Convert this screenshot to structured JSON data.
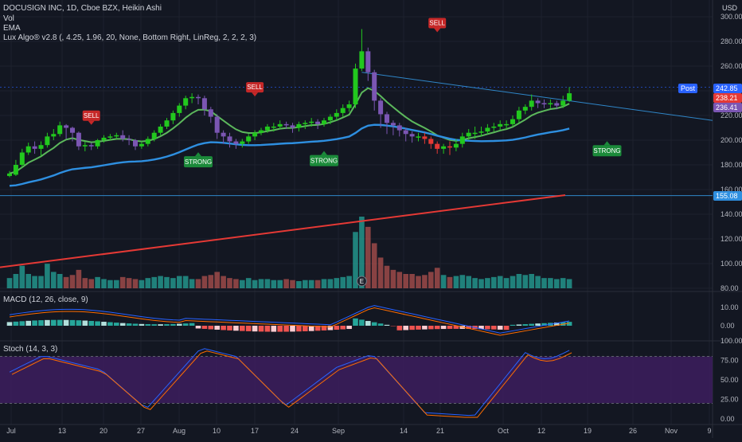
{
  "symbol": {
    "title": "DOCUSIGN INC, 1D, Cboe BZX, Heikin Ashi",
    "currency": "USD"
  },
  "indicators": {
    "vol": "Vol",
    "ema": "EMA",
    "lux": "Lux Algo® v2.8 (, 4.25, 1.96, 20, None, Bottom Right, LinReg, 2, 2, 2, 3)",
    "macd": "MACD (12, 26, close, 9)",
    "stoch": "Stoch (14, 3, 3)"
  },
  "price_tags": {
    "post_label": "Post",
    "post_value": "242.85",
    "last_value": "238.21",
    "ema_value": "236.41",
    "line_value": "155.08"
  },
  "earnings_marker": "E",
  "colors": {
    "background": "#131722",
    "bull": "#22c81e",
    "bear_purple": "#7b56b3",
    "bear_red": "#e53935",
    "ema_fast": "#5cb85c",
    "ema_mid": "#2e8fe0",
    "ema_slow": "#e53935",
    "trendline": "#2f86c8",
    "stoch_fill": "#3d1d5e"
  },
  "chart_data": [
    {
      "type": "candlestick",
      "style": "Heikin Ashi",
      "price_axis": [
        80,
        100,
        120,
        140,
        160,
        180,
        200,
        220,
        240,
        260,
        280,
        300
      ],
      "time_axis": [
        "Jul",
        "13",
        "20",
        "27",
        "Aug",
        "10",
        "17",
        "24",
        "Sep",
        "14",
        "21",
        "Oct",
        "12",
        "19",
        "26",
        "Nov",
        "9"
      ],
      "candles": [
        {
          "o": 171,
          "c": 173,
          "h": 175,
          "l": 170
        },
        {
          "o": 172,
          "c": 180,
          "h": 184,
          "l": 171
        },
        {
          "o": 180,
          "c": 190,
          "h": 193,
          "l": 178
        },
        {
          "o": 190,
          "c": 195,
          "h": 198,
          "l": 188
        },
        {
          "o": 195,
          "c": 193,
          "h": 199,
          "l": 189
        },
        {
          "o": 193,
          "c": 196,
          "h": 199,
          "l": 187
        },
        {
          "o": 196,
          "c": 203,
          "h": 206,
          "l": 194
        },
        {
          "o": 203,
          "c": 205,
          "h": 209,
          "l": 200
        },
        {
          "o": 205,
          "c": 212,
          "h": 215,
          "l": 203
        },
        {
          "o": 212,
          "c": 210,
          "h": 213,
          "l": 201
        },
        {
          "o": 210,
          "c": 206,
          "h": 211,
          "l": 199
        },
        {
          "o": 206,
          "c": 195,
          "h": 207,
          "l": 192
        },
        {
          "o": 195,
          "c": 196,
          "h": 199,
          "l": 191
        },
        {
          "o": 196,
          "c": 195,
          "h": 198,
          "l": 192
        },
        {
          "o": 195,
          "c": 200,
          "h": 201,
          "l": 193
        },
        {
          "o": 200,
          "c": 202,
          "h": 204,
          "l": 198
        },
        {
          "o": 202,
          "c": 203,
          "h": 205,
          "l": 200
        },
        {
          "o": 203,
          "c": 204,
          "h": 206,
          "l": 201
        },
        {
          "o": 204,
          "c": 201,
          "h": 208,
          "l": 199
        },
        {
          "o": 201,
          "c": 200,
          "h": 204,
          "l": 196
        },
        {
          "o": 200,
          "c": 195,
          "h": 201,
          "l": 192
        },
        {
          "o": 195,
          "c": 197,
          "h": 199,
          "l": 193
        },
        {
          "o": 197,
          "c": 201,
          "h": 203,
          "l": 195
        },
        {
          "o": 201,
          "c": 206,
          "h": 208,
          "l": 199
        },
        {
          "o": 206,
          "c": 211,
          "h": 213,
          "l": 204
        },
        {
          "o": 211,
          "c": 216,
          "h": 218,
          "l": 209
        },
        {
          "o": 216,
          "c": 222,
          "h": 224,
          "l": 213
        },
        {
          "o": 222,
          "c": 228,
          "h": 230,
          "l": 219
        },
        {
          "o": 228,
          "c": 234,
          "h": 236,
          "l": 225
        },
        {
          "o": 234,
          "c": 235,
          "h": 238,
          "l": 230
        },
        {
          "o": 235,
          "c": 234,
          "h": 237,
          "l": 229
        },
        {
          "o": 234,
          "c": 225,
          "h": 236,
          "l": 220
        },
        {
          "o": 225,
          "c": 219,
          "h": 227,
          "l": 214
        },
        {
          "o": 219,
          "c": 206,
          "h": 221,
          "l": 201
        },
        {
          "o": 206,
          "c": 203,
          "h": 208,
          "l": 197
        },
        {
          "o": 203,
          "c": 199,
          "h": 206,
          "l": 194
        },
        {
          "o": 199,
          "c": 197,
          "h": 201,
          "l": 193
        },
        {
          "o": 197,
          "c": 199,
          "h": 201,
          "l": 194
        },
        {
          "o": 199,
          "c": 203,
          "h": 205,
          "l": 197
        },
        {
          "o": 203,
          "c": 206,
          "h": 208,
          "l": 200
        },
        {
          "o": 206,
          "c": 208,
          "h": 210,
          "l": 204
        },
        {
          "o": 208,
          "c": 211,
          "h": 213,
          "l": 206
        },
        {
          "o": 211,
          "c": 211,
          "h": 214,
          "l": 207
        },
        {
          "o": 211,
          "c": 213,
          "h": 216,
          "l": 209
        },
        {
          "o": 213,
          "c": 212,
          "h": 215,
          "l": 209
        },
        {
          "o": 212,
          "c": 210,
          "h": 214,
          "l": 206
        },
        {
          "o": 210,
          "c": 213,
          "h": 215,
          "l": 207
        },
        {
          "o": 213,
          "c": 214,
          "h": 216,
          "l": 209
        },
        {
          "o": 214,
          "c": 215,
          "h": 218,
          "l": 211
        },
        {
          "o": 215,
          "c": 213,
          "h": 217,
          "l": 209
        },
        {
          "o": 213,
          "c": 216,
          "h": 218,
          "l": 211
        },
        {
          "o": 216,
          "c": 219,
          "h": 221,
          "l": 213
        },
        {
          "o": 219,
          "c": 222,
          "h": 225,
          "l": 216
        },
        {
          "o": 222,
          "c": 226,
          "h": 229,
          "l": 219
        },
        {
          "o": 226,
          "c": 229,
          "h": 232,
          "l": 223
        },
        {
          "o": 229,
          "c": 258,
          "h": 262,
          "l": 226
        },
        {
          "o": 258,
          "c": 272,
          "h": 290,
          "l": 256
        },
        {
          "o": 272,
          "c": 255,
          "h": 275,
          "l": 248
        },
        {
          "o": 255,
          "c": 232,
          "h": 257,
          "l": 224
        },
        {
          "o": 232,
          "c": 221,
          "h": 234,
          "l": 210
        },
        {
          "o": 221,
          "c": 214,
          "h": 223,
          "l": 205
        },
        {
          "o": 214,
          "c": 212,
          "h": 216,
          "l": 204
        },
        {
          "o": 212,
          "c": 208,
          "h": 214,
          "l": 203
        },
        {
          "o": 208,
          "c": 205,
          "h": 210,
          "l": 199
        },
        {
          "o": 205,
          "c": 203,
          "h": 207,
          "l": 198
        },
        {
          "o": 203,
          "c": 203,
          "h": 206,
          "l": 199
        },
        {
          "o": 203,
          "c": 201,
          "h": 206,
          "l": 197
        },
        {
          "o": 201,
          "c": 197,
          "h": 203,
          "l": 193
        },
        {
          "o": 197,
          "c": 193,
          "h": 199,
          "l": 189
        },
        {
          "o": 193,
          "c": 195,
          "h": 197,
          "l": 189
        },
        {
          "o": 195,
          "c": 194,
          "h": 199,
          "l": 188
        },
        {
          "o": 194,
          "c": 197,
          "h": 201,
          "l": 191
        },
        {
          "o": 197,
          "c": 203,
          "h": 206,
          "l": 194
        },
        {
          "o": 203,
          "c": 206,
          "h": 209,
          "l": 200
        },
        {
          "o": 206,
          "c": 206,
          "h": 211,
          "l": 201
        },
        {
          "o": 206,
          "c": 207,
          "h": 211,
          "l": 203
        },
        {
          "o": 207,
          "c": 210,
          "h": 213,
          "l": 205
        },
        {
          "o": 210,
          "c": 211,
          "h": 214,
          "l": 207
        },
        {
          "o": 211,
          "c": 213,
          "h": 216,
          "l": 208
        },
        {
          "o": 213,
          "c": 213,
          "h": 216,
          "l": 209
        },
        {
          "o": 213,
          "c": 217,
          "h": 220,
          "l": 211
        },
        {
          "o": 217,
          "c": 224,
          "h": 227,
          "l": 214
        },
        {
          "o": 224,
          "c": 227,
          "h": 229,
          "l": 221
        },
        {
          "o": 227,
          "c": 232,
          "h": 237,
          "l": 224
        },
        {
          "o": 232,
          "c": 230,
          "h": 234,
          "l": 226
        },
        {
          "o": 230,
          "c": 229,
          "h": 233,
          "l": 226
        },
        {
          "o": 229,
          "c": 230,
          "h": 233,
          "l": 226
        },
        {
          "o": 230,
          "c": 228,
          "h": 232,
          "l": 225
        },
        {
          "o": 228,
          "c": 232,
          "h": 236,
          "l": 226
        },
        {
          "o": 232,
          "c": 238,
          "h": 243,
          "l": 231
        }
      ],
      "volume": [
        {
          "v": 10,
          "up": true
        },
        {
          "v": 14,
          "up": true
        },
        {
          "v": 22,
          "up": true
        },
        {
          "v": 14,
          "up": true
        },
        {
          "v": 12,
          "up": true
        },
        {
          "v": 12,
          "up": true
        },
        {
          "v": 24,
          "up": true
        },
        {
          "v": 16,
          "up": true
        },
        {
          "v": 14,
          "up": true
        },
        {
          "v": 11,
          "up": false
        },
        {
          "v": 13,
          "up": false
        },
        {
          "v": 18,
          "up": false
        },
        {
          "v": 10,
          "up": false
        },
        {
          "v": 9,
          "up": false
        },
        {
          "v": 11,
          "up": true
        },
        {
          "v": 9,
          "up": true
        },
        {
          "v": 8,
          "up": true
        },
        {
          "v": 8,
          "up": true
        },
        {
          "v": 11,
          "up": false
        },
        {
          "v": 10,
          "up": false
        },
        {
          "v": 9,
          "up": false
        },
        {
          "v": 8,
          "up": true
        },
        {
          "v": 10,
          "up": true
        },
        {
          "v": 11,
          "up": true
        },
        {
          "v": 12,
          "up": true
        },
        {
          "v": 11,
          "up": true
        },
        {
          "v": 10,
          "up": true
        },
        {
          "v": 12,
          "up": true
        },
        {
          "v": 12,
          "up": true
        },
        {
          "v": 9,
          "up": true
        },
        {
          "v": 9,
          "up": false
        },
        {
          "v": 12,
          "up": false
        },
        {
          "v": 13,
          "up": false
        },
        {
          "v": 16,
          "up": false
        },
        {
          "v": 12,
          "up": false
        },
        {
          "v": 10,
          "up": false
        },
        {
          "v": 9,
          "up": false
        },
        {
          "v": 8,
          "up": true
        },
        {
          "v": 10,
          "up": true
        },
        {
          "v": 8,
          "up": true
        },
        {
          "v": 9,
          "up": true
        },
        {
          "v": 9,
          "up": true
        },
        {
          "v": 8,
          "up": true
        },
        {
          "v": 8,
          "up": true
        },
        {
          "v": 9,
          "up": false
        },
        {
          "v": 8,
          "up": false
        },
        {
          "v": 7,
          "up": true
        },
        {
          "v": 8,
          "up": true
        },
        {
          "v": 8,
          "up": true
        },
        {
          "v": 8,
          "up": false
        },
        {
          "v": 9,
          "up": true
        },
        {
          "v": 9,
          "up": true
        },
        {
          "v": 10,
          "up": true
        },
        {
          "v": 11,
          "up": true
        },
        {
          "v": 12,
          "up": true
        },
        {
          "v": 55,
          "up": true
        },
        {
          "v": 70,
          "up": true
        },
        {
          "v": 60,
          "up": false
        },
        {
          "v": 44,
          "up": false
        },
        {
          "v": 30,
          "up": false
        },
        {
          "v": 22,
          "up": false
        },
        {
          "v": 18,
          "up": false
        },
        {
          "v": 16,
          "up": false
        },
        {
          "v": 14,
          "up": false
        },
        {
          "v": 14,
          "up": false
        },
        {
          "v": 12,
          "up": false
        },
        {
          "v": 13,
          "up": false
        },
        {
          "v": 16,
          "up": false
        },
        {
          "v": 20,
          "up": false
        },
        {
          "v": 13,
          "up": true
        },
        {
          "v": 11,
          "up": false
        },
        {
          "v": 12,
          "up": true
        },
        {
          "v": 13,
          "up": true
        },
        {
          "v": 12,
          "up": true
        },
        {
          "v": 10,
          "up": true
        },
        {
          "v": 9,
          "up": true
        },
        {
          "v": 10,
          "up": true
        },
        {
          "v": 11,
          "up": true
        },
        {
          "v": 12,
          "up": true
        },
        {
          "v": 10,
          "up": true
        },
        {
          "v": 12,
          "up": true
        },
        {
          "v": 14,
          "up": true
        },
        {
          "v": 13,
          "up": true
        },
        {
          "v": 14,
          "up": true
        },
        {
          "v": 12,
          "up": true
        },
        {
          "v": 10,
          "up": true
        },
        {
          "v": 10,
          "up": true
        },
        {
          "v": 9,
          "up": true
        },
        {
          "v": 10,
          "up": true
        },
        {
          "v": 9,
          "up": true
        }
      ],
      "signals": [
        {
          "label": "SELL",
          "index": 13,
          "price": 215,
          "kind": "sell"
        },
        {
          "label": "SELL",
          "index": 39,
          "price": 238,
          "kind": "sell"
        },
        {
          "label": "SELL",
          "index": 68,
          "price": 290,
          "kind": "sell"
        },
        {
          "label": "STRONG",
          "index": 30,
          "price": 187,
          "kind": "buy"
        },
        {
          "label": "STRONG",
          "index": 50,
          "price": 188,
          "kind": "buy"
        },
        {
          "label": "STRONG",
          "index": 95,
          "price": 196,
          "kind": "buy"
        }
      ]
    },
    {
      "type": "line",
      "title": "MACD (12, 26, close, 9)",
      "y_ticks": [
        "10.00",
        "0.00"
      ]
    },
    {
      "type": "line",
      "title": "Stoch (14, 3, 3)",
      "y_ticks": [
        "100.00",
        "75.00",
        "50.00",
        "25.00",
        "0.00"
      ]
    }
  ]
}
